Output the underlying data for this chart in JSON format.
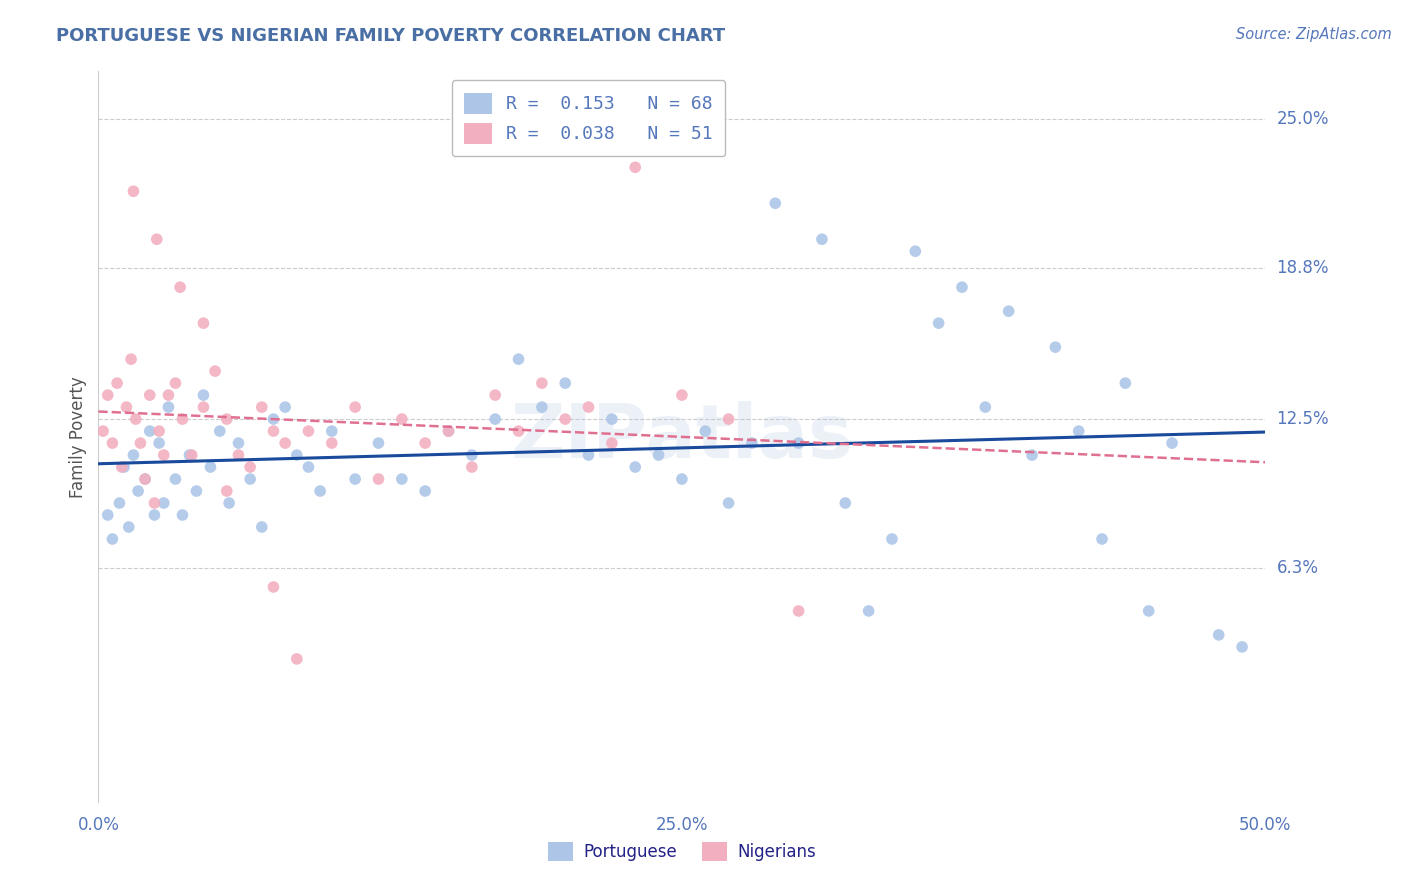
{
  "title": "PORTUGUESE VS NIGERIAN FAMILY POVERTY CORRELATION CHART",
  "source": "Source: ZipAtlas.com",
  "ylabel": "Family Poverty",
  "xlim": [
    0.0,
    50.0
  ],
  "ylim": [
    -3.5,
    27.0
  ],
  "xtick_positions": [
    0.0,
    12.5,
    25.0,
    37.5,
    50.0
  ],
  "xtick_labels": [
    "0.0%",
    "",
    "25.0%",
    "",
    "50.0%"
  ],
  "ytick_vals": [
    6.3,
    12.5,
    18.8,
    25.0
  ],
  "ytick_labels": [
    "6.3%",
    "12.5%",
    "18.8%",
    "25.0%"
  ],
  "grid_color": "#cccccc",
  "background_color": "#ffffff",
  "title_color": "#4a6fa5",
  "axis_color": "#5577bb",
  "watermark": "ZIPatlas",
  "portuguese_color": "#adc6e8",
  "nigerian_color": "#f2afc0",
  "portuguese_line_color": "#1a4a9c",
  "nigerian_line_color": "#e07090",
  "R_portuguese": 0.153,
  "N_portuguese": 68,
  "R_nigerian": 0.038,
  "N_nigerian": 51,
  "port_x": [
    0.4,
    0.6,
    0.9,
    1.1,
    1.3,
    1.5,
    1.7,
    2.0,
    2.2,
    2.4,
    2.6,
    2.8,
    3.0,
    3.3,
    3.6,
    3.9,
    4.2,
    4.5,
    4.8,
    5.2,
    5.6,
    6.0,
    6.5,
    7.0,
    7.5,
    8.0,
    8.5,
    9.0,
    9.5,
    10.0,
    11.0,
    12.0,
    13.0,
    14.0,
    15.0,
    16.0,
    17.0,
    18.0,
    19.0,
    20.0,
    21.0,
    22.0,
    23.0,
    24.0,
    25.0,
    26.0,
    27.0,
    28.0,
    30.0,
    32.0,
    34.0,
    36.0,
    38.0,
    40.0,
    42.0,
    44.0,
    46.0,
    48.0,
    31.0,
    37.0,
    43.0,
    29.0,
    33.0,
    35.0,
    39.0,
    41.0,
    45.0,
    49.0
  ],
  "port_y": [
    8.5,
    7.5,
    9.0,
    10.5,
    8.0,
    11.0,
    9.5,
    10.0,
    12.0,
    8.5,
    11.5,
    9.0,
    13.0,
    10.0,
    8.5,
    11.0,
    9.5,
    13.5,
    10.5,
    12.0,
    9.0,
    11.5,
    10.0,
    8.0,
    12.5,
    13.0,
    11.0,
    10.5,
    9.5,
    12.0,
    10.0,
    11.5,
    10.0,
    9.5,
    12.0,
    11.0,
    12.5,
    15.0,
    13.0,
    14.0,
    11.0,
    12.5,
    10.5,
    11.0,
    10.0,
    12.0,
    9.0,
    11.5,
    11.5,
    9.0,
    7.5,
    16.5,
    13.0,
    11.0,
    12.0,
    14.0,
    11.5,
    3.5,
    20.0,
    18.0,
    7.5,
    21.5,
    4.5,
    19.5,
    17.0,
    15.5,
    4.5,
    3.0
  ],
  "nig_x": [
    0.2,
    0.4,
    0.6,
    0.8,
    1.0,
    1.2,
    1.4,
    1.6,
    1.8,
    2.0,
    2.2,
    2.4,
    2.6,
    2.8,
    3.0,
    3.3,
    3.6,
    4.0,
    4.5,
    5.0,
    5.5,
    6.0,
    6.5,
    7.0,
    7.5,
    8.0,
    9.0,
    10.0,
    11.0,
    12.0,
    13.0,
    14.0,
    15.0,
    16.0,
    17.0,
    18.0,
    19.0,
    20.0,
    21.0,
    22.0,
    23.0,
    1.5,
    2.5,
    3.5,
    4.5,
    5.5,
    7.5,
    8.5,
    25.0,
    27.0,
    30.0
  ],
  "nig_y": [
    12.0,
    13.5,
    11.5,
    14.0,
    10.5,
    13.0,
    15.0,
    12.5,
    11.5,
    10.0,
    13.5,
    9.0,
    12.0,
    11.0,
    13.5,
    14.0,
    12.5,
    11.0,
    13.0,
    14.5,
    12.5,
    11.0,
    10.5,
    13.0,
    12.0,
    11.5,
    12.0,
    11.5,
    13.0,
    10.0,
    12.5,
    11.5,
    12.0,
    10.5,
    13.5,
    12.0,
    14.0,
    12.5,
    13.0,
    11.5,
    23.0,
    22.0,
    20.0,
    18.0,
    16.5,
    9.5,
    5.5,
    2.5,
    13.5,
    12.5,
    4.5
  ]
}
